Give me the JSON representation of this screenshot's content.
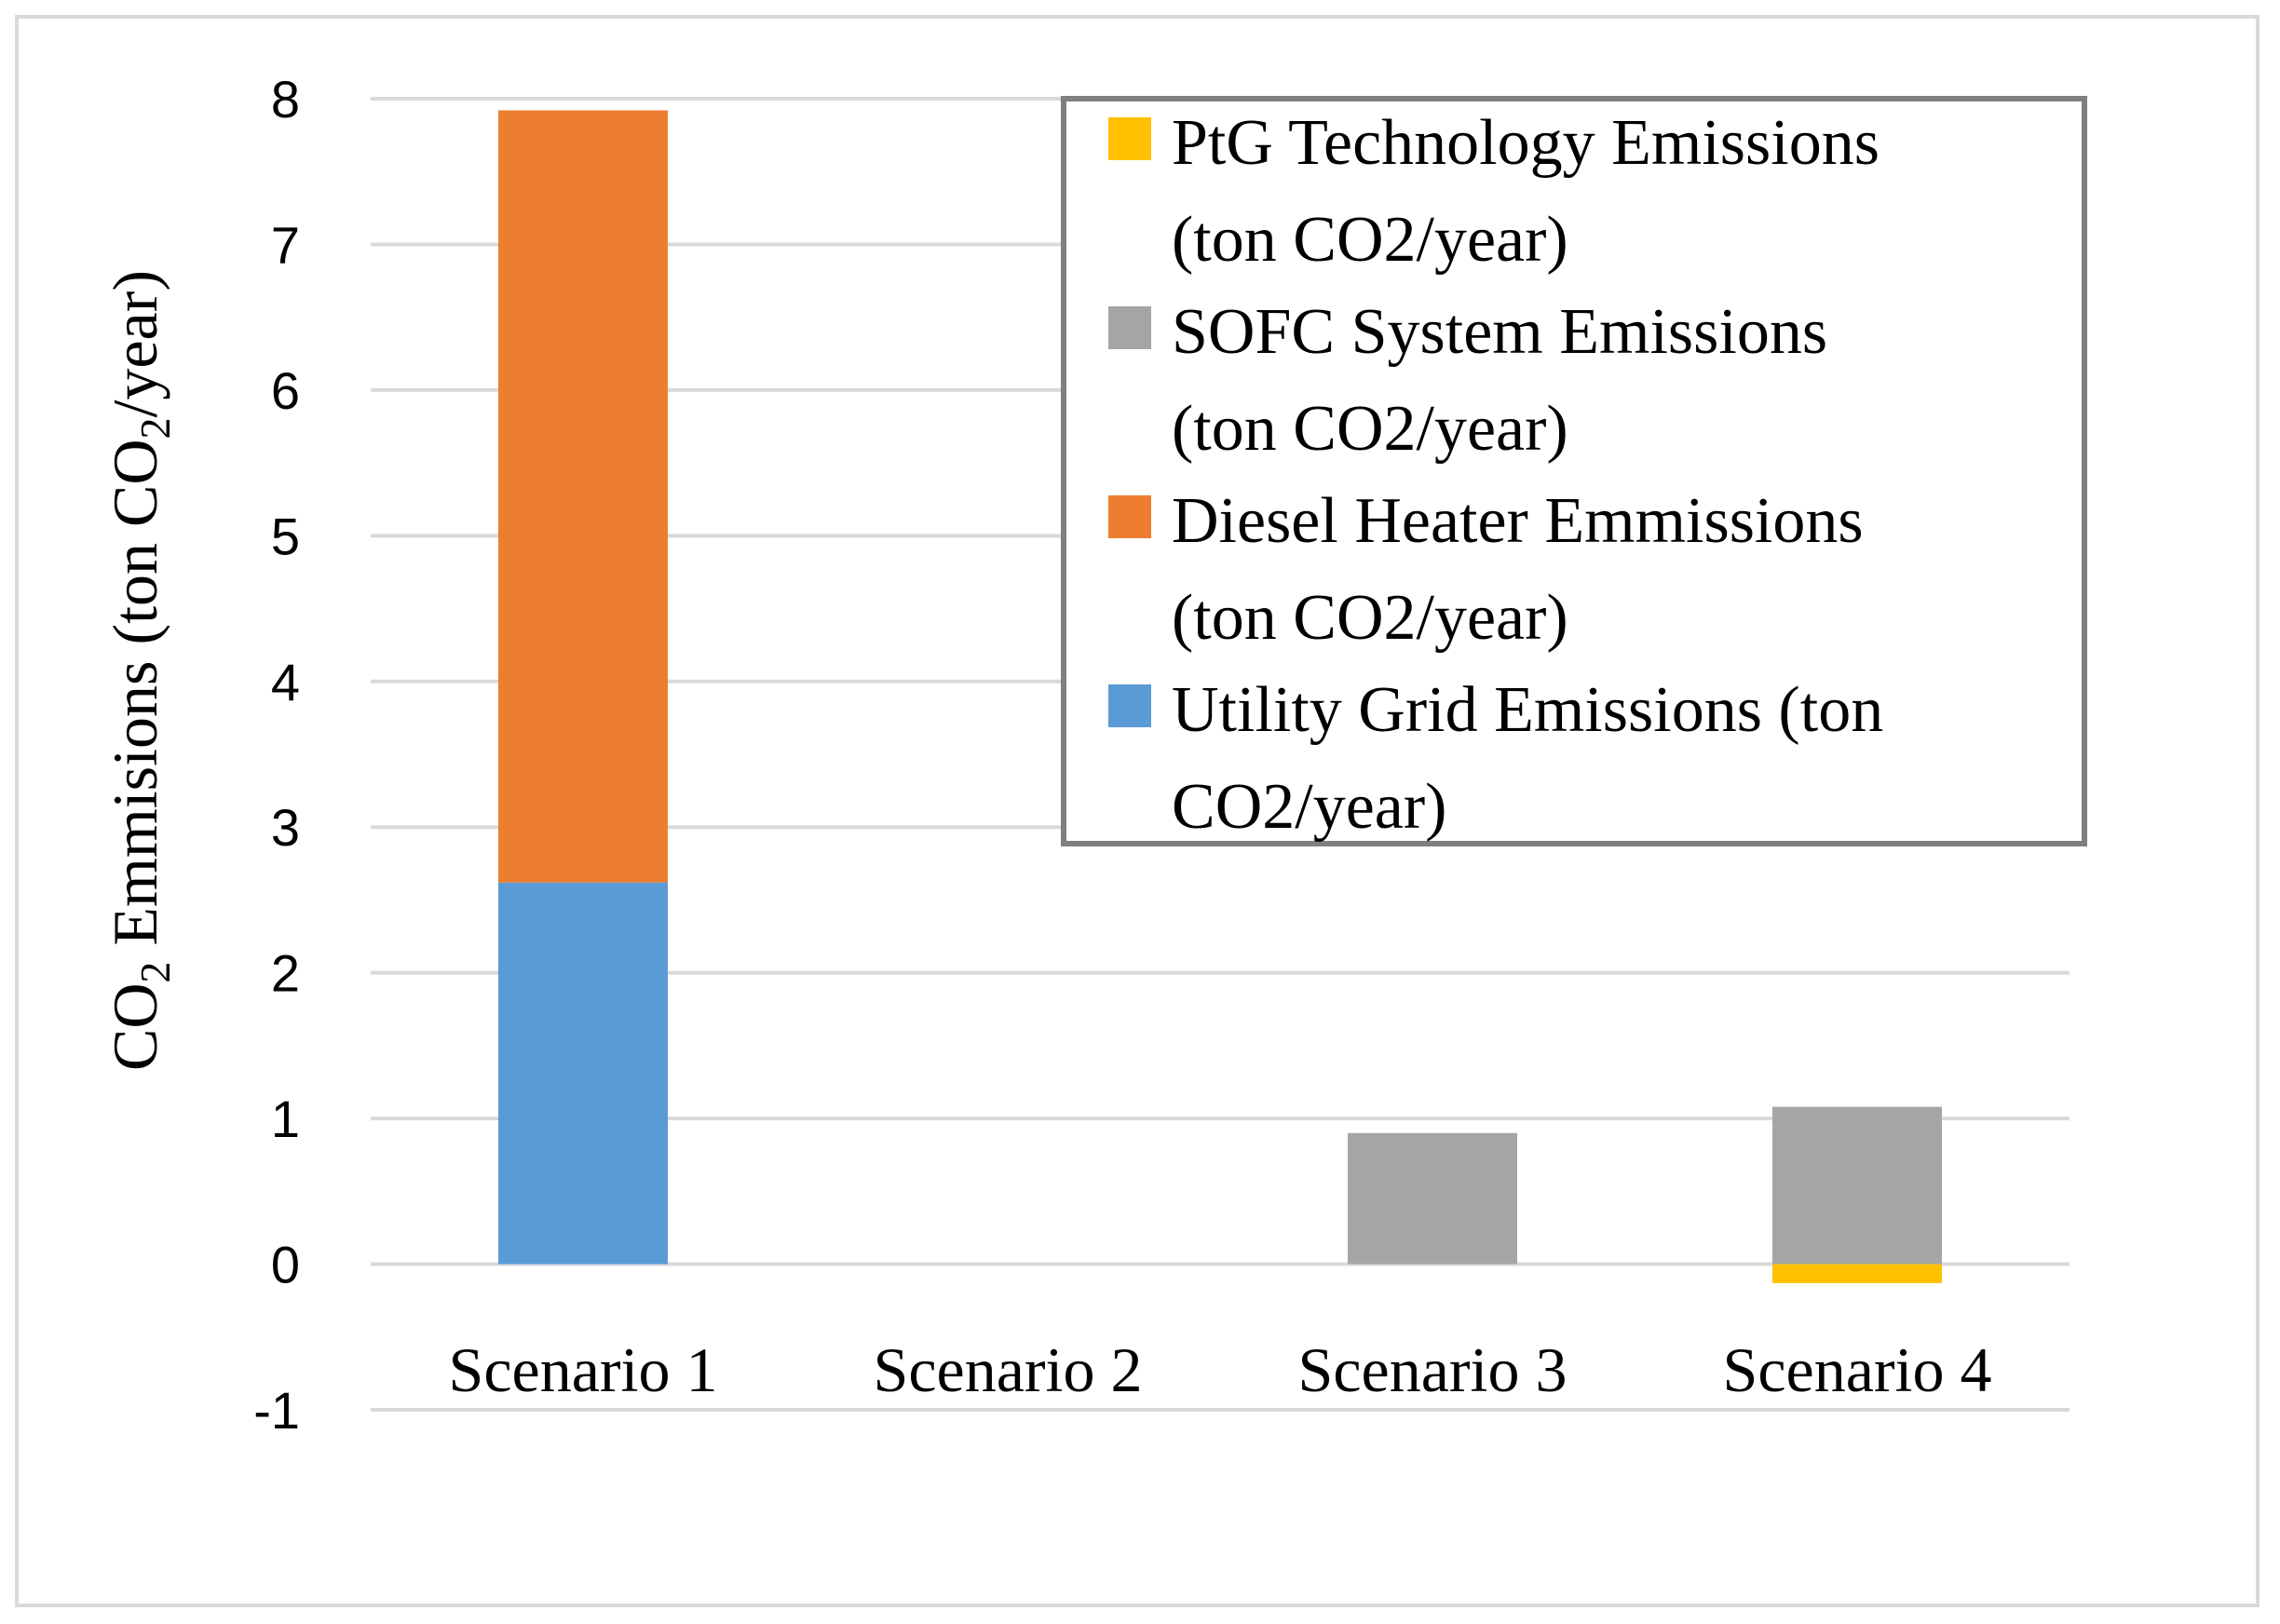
{
  "chart_data": {
    "type": "bar",
    "stacked": true,
    "categories": [
      "Scenario 1",
      "Scenario 2",
      "Scenario 3",
      "Scenario 4"
    ],
    "series": [
      {
        "name": "Utility Grid Emissions (ton CO2/year)",
        "legend_lines": [
          "Utility Grid Emissions (ton",
          "CO2/year)"
        ],
        "color": "#5B9BD5",
        "values": [
          2.62,
          0,
          0,
          0
        ]
      },
      {
        "name": "Diesel Heater Emmissions (ton CO2/year)",
        "legend_lines": [
          "Diesel Heater Emmissions",
          "(ton CO2/year)"
        ],
        "color": "#ED7D31",
        "values": [
          5.3,
          0,
          0,
          0
        ]
      },
      {
        "name": "SOFC System Emissions (ton CO2/year)",
        "legend_lines": [
          "SOFC System Emissions",
          "(ton CO2/year)"
        ],
        "color": "#A5A5A5",
        "values": [
          0,
          0,
          0.9,
          1.08
        ]
      },
      {
        "name": "PtG Technology Emissions (ton CO2/year)",
        "legend_lines": [
          "PtG Technology Emissions",
          "(ton CO2/year)"
        ],
        "color": "#FFC000",
        "values": [
          0,
          0,
          0,
          -0.13
        ]
      }
    ],
    "legend_order": [
      3,
      2,
      1,
      0
    ],
    "ylabel": {
      "prefix": "CO",
      "sub1": "2",
      "mid": " Emmisions (ton CO",
      "sub2": "2",
      "suffix": "/year)"
    },
    "xlabel": "",
    "ylim": [
      -1,
      8
    ],
    "yticks": [
      -1,
      0,
      1,
      2,
      3,
      4,
      5,
      6,
      7,
      8
    ],
    "grid": true,
    "legend_position": "top-right"
  }
}
